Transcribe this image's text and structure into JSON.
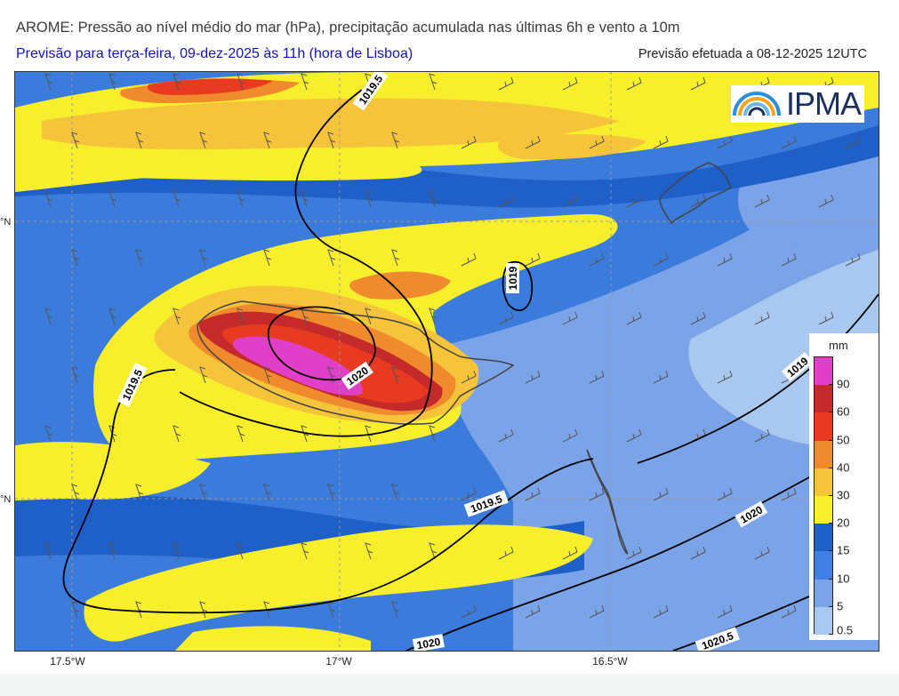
{
  "header": {
    "title": "AROME: Pressão ao nível médio do mar (hPa), precipitação acumulada nas últimas 6h e vento a 10m",
    "subtitle": "Previsão para terça-feira, 09-dez-2025 às 11h (hora de Lisboa)",
    "issued": "Previsão efetuada a 08-12-2025 12UTC"
  },
  "logo": {
    "text": "IPMA",
    "icon": "ipma-rainbow-icon"
  },
  "axes": {
    "lat_labels": [
      "°N",
      "°N"
    ],
    "lon_labels": [
      "17.5°W",
      "17°W",
      "16.5°W"
    ]
  },
  "legend": {
    "unit": "mm",
    "levels": [
      {
        "label": "0.5",
        "value": 0.5,
        "color": "#a8c8f0"
      },
      {
        "label": "5",
        "value": 5,
        "color": "#7aa3e8"
      },
      {
        "label": "10",
        "value": 10,
        "color": "#3f7fe6"
      },
      {
        "label": "15",
        "value": 15,
        "color": "#1f5fc8"
      },
      {
        "label": "20",
        "value": 20,
        "color": "#f7ef2c"
      },
      {
        "label": "30",
        "value": 30,
        "color": "#f5c43a"
      },
      {
        "label": "40",
        "value": 40,
        "color": "#ef8a2d"
      },
      {
        "label": "50",
        "value": 50,
        "color": "#e83a20"
      },
      {
        "label": "60",
        "value": 60,
        "color": "#c42a2a"
      },
      {
        "label": "90",
        "value": 90,
        "color": "#e040c8"
      }
    ]
  },
  "isobar_labels": [
    "1019.5",
    "1019",
    "1020",
    "1019.5",
    "1019.5",
    "1019",
    "1020",
    "1020",
    "1020.5"
  ],
  "colors": {
    "title": "#3c3c3c",
    "subtitle": "#1414b4",
    "sea_background": "#3b7bdc"
  }
}
